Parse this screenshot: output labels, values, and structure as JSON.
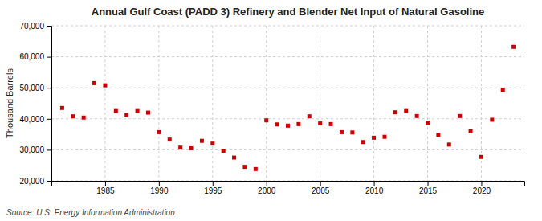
{
  "chart_data": {
    "type": "scatter",
    "title": "Annual Gulf Coast (PADD 3) Refinery and Blender Net Input of Natural Gasoline",
    "ylabel": "Thousand Barrels",
    "source": "Source: U.S. Energy Information Administration",
    "color": "#cc0000",
    "marker": "square",
    "grid": true,
    "x": [
      1981,
      1982,
      1983,
      1984,
      1985,
      1986,
      1987,
      1988,
      1989,
      1990,
      1991,
      1992,
      1993,
      1994,
      1995,
      1996,
      1997,
      1998,
      1999,
      2000,
      2001,
      2002,
      2003,
      2004,
      2005,
      2006,
      2007,
      2008,
      2009,
      2010,
      2011,
      2012,
      2013,
      2014,
      2015,
      2016,
      2017,
      2018,
      2019,
      2020,
      2021,
      2022,
      2023
    ],
    "values": [
      43500,
      40800,
      40400,
      51500,
      50800,
      42500,
      41200,
      42500,
      42000,
      35700,
      33300,
      30700,
      30500,
      32900,
      32000,
      29700,
      27500,
      24500,
      23800,
      39500,
      38200,
      37800,
      38300,
      40800,
      38500,
      38300,
      35700,
      35600,
      32500,
      33900,
      34200,
      42100,
      42500,
      40900,
      38700,
      34800,
      31700,
      40900,
      36000,
      27700,
      39700,
      49300,
      63200
    ],
    "xlim": [
      1980,
      2024
    ],
    "xticks": [
      1985,
      1990,
      1995,
      2000,
      2005,
      2010,
      2015,
      2020
    ],
    "ylim": [
      20000,
      70000
    ],
    "yticks": [
      {
        "value": 20000,
        "label": "20,000"
      },
      {
        "value": 30000,
        "label": "30,000"
      },
      {
        "value": 40000,
        "label": "40,000"
      },
      {
        "value": 50000,
        "label": "50,000"
      },
      {
        "value": 60000,
        "label": "60,000"
      },
      {
        "value": 70000,
        "label": "70,000"
      }
    ]
  }
}
